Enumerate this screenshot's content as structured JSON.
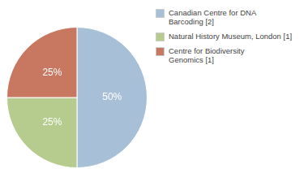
{
  "chart_data": {
    "type": "pie",
    "categories": [
      "Canadian Centre for DNA\nBarcoding [2]",
      "Natural History Museum, London [1]",
      "Centre for Biodiversity\nGenomics [1]"
    ],
    "values": [
      50,
      25,
      25
    ],
    "value_labels": [
      "50%",
      "25%",
      "25%"
    ],
    "colors": [
      "#a8bfd8",
      "#b5cc8e",
      "#c87761"
    ],
    "data_labels": true,
    "legend": "upper right"
  }
}
